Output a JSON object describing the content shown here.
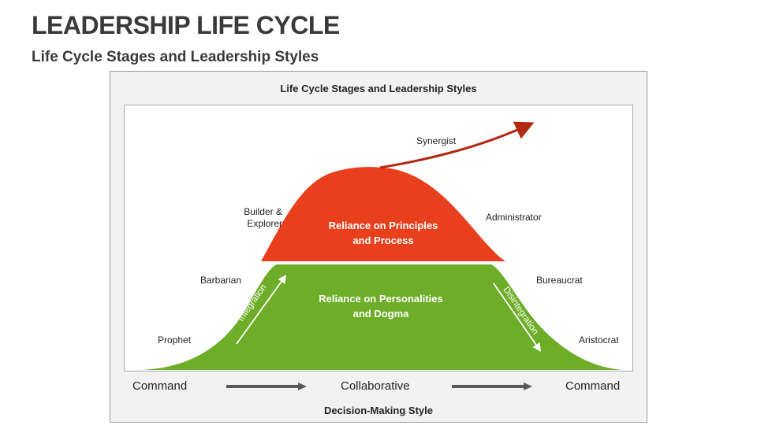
{
  "title": "LEADERSHIP LIFE CYCLE",
  "subtitle": "Life Cycle Stages and Leadership Styles",
  "diagram": {
    "title": "Life Cycle Stages and Leadership Styles",
    "stages": {
      "synergist": "Synergist",
      "builder_explorer": "Builder & Explorer",
      "administrator": "Administrator",
      "barbarian": "Barbarian",
      "bureaucrat": "Bureaucrat",
      "prophet": "Prophet",
      "aristocrat": "Aristocrat"
    },
    "top_zone": {
      "line1": "Reliance on Principles",
      "line2": "and Process",
      "color": "#E8401C"
    },
    "bottom_zone": {
      "line1": "Reliance on Personalities",
      "line2": "and Dogma",
      "color": "#6DAD28"
    },
    "rising_arrow_label": "Integration",
    "falling_arrow_label": "Disintegration",
    "synergist_arrow_color": "#B22A12",
    "axis": {
      "left": "Command",
      "middle": "Collaborative",
      "right": "Command",
      "title": "Decision-Making Style",
      "arrow_color": "#595959"
    }
  }
}
